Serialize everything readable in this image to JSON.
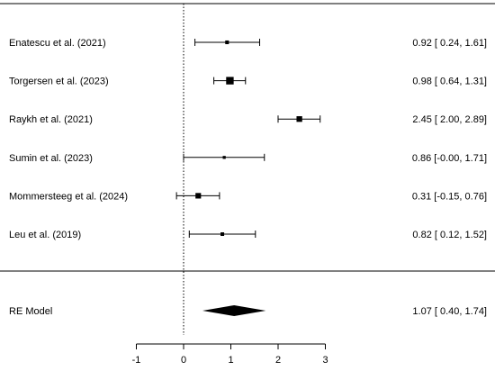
{
  "chart_data": {
    "type": "forest",
    "studies": [
      {
        "label": "Enatescu et al. (2021)",
        "estimate": 0.92,
        "ci": [
          0.24,
          1.61
        ],
        "ci_text": "0.92 [ 0.24, 1.61]"
      },
      {
        "label": "Torgersen et al. (2023)",
        "estimate": 0.98,
        "ci": [
          0.64,
          1.31
        ],
        "ci_text": "0.98 [ 0.64, 1.31]"
      },
      {
        "label": "Raykh et al. (2021)",
        "estimate": 2.45,
        "ci": [
          2.0,
          2.89
        ],
        "ci_text": "2.45 [ 2.00, 2.89]"
      },
      {
        "label": "Sumin et al. (2023)",
        "estimate": 0.86,
        "ci": [
          0.0,
          1.71
        ],
        "ci_text": "0.86 [-0.00, 1.71]"
      },
      {
        "label": "Mommersteeg et al. (2024)",
        "estimate": 0.31,
        "ci": [
          -0.15,
          0.76
        ],
        "ci_text": "0.31 [-0.15, 0.76]"
      },
      {
        "label": "Leu et al. (2019)",
        "estimate": 0.82,
        "ci": [
          0.12,
          1.52
        ],
        "ci_text": "0.82 [ 0.12, 1.52]"
      }
    ],
    "summary": {
      "label": "RE Model",
      "estimate": 1.07,
      "ci": [
        0.4,
        1.74
      ],
      "ci_text": "1.07 [ 0.40, 1.74]"
    },
    "x_ticks": [
      -1,
      0,
      1,
      2,
      3
    ],
    "x_tick_labels": [
      "-1",
      "0",
      "1",
      "2",
      "3"
    ],
    "xlim": [
      -1,
      3
    ],
    "reference_line": 0
  }
}
